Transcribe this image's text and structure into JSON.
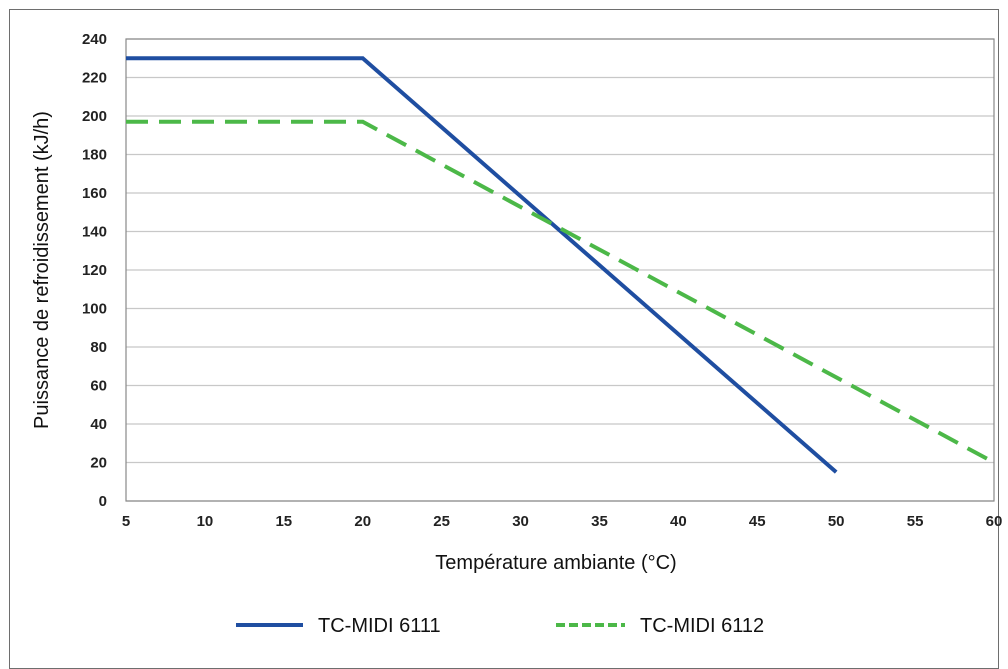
{
  "chart_data": {
    "type": "line",
    "xlabel": "Température ambiante (°C)",
    "ylabel": "Puissance de refroidissement (kJ/h)",
    "xlim": [
      5,
      60
    ],
    "ylim": [
      0,
      240
    ],
    "xticks": [
      5,
      10,
      15,
      20,
      25,
      30,
      35,
      40,
      45,
      50,
      55,
      60
    ],
    "yticks": [
      0,
      20,
      40,
      60,
      80,
      100,
      120,
      140,
      160,
      180,
      200,
      220,
      240
    ],
    "grid": "horizontal",
    "legend_position": "bottom",
    "series": [
      {
        "name": "TC-MIDI 6111",
        "color": "#1f4ea1",
        "style": "solid",
        "x": [
          5,
          20,
          50
        ],
        "y": [
          230,
          230,
          15
        ]
      },
      {
        "name": "TC-MIDI 6112",
        "color": "#4cb848",
        "style": "dashed",
        "x": [
          5,
          20,
          60
        ],
        "y": [
          197,
          197,
          20
        ]
      }
    ]
  }
}
